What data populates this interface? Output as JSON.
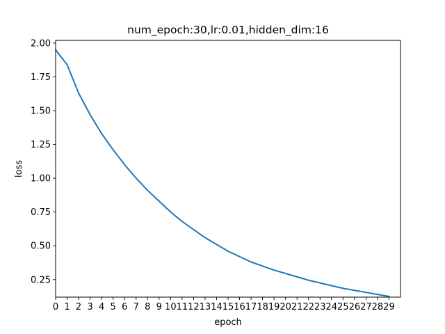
{
  "chart_data": {
    "type": "line",
    "title": "num_epoch:30,lr:0.01,hidden_dim:16",
    "xlabel": "epoch",
    "ylabel": "loss",
    "xlim": [
      0,
      30
    ],
    "ylim": [
      0.12,
      2.02
    ],
    "x": [
      0,
      1,
      2,
      3,
      4,
      5,
      6,
      7,
      8,
      9,
      10,
      11,
      12,
      13,
      14,
      15,
      16,
      17,
      18,
      19,
      20,
      21,
      22,
      23,
      24,
      25,
      26,
      27,
      28,
      29
    ],
    "xticks": [
      "0",
      "1",
      "2",
      "3",
      "4",
      "5",
      "6",
      "7",
      "8",
      "9",
      "10",
      "11",
      "12",
      "13",
      "14",
      "15",
      "16",
      "17",
      "18",
      "19",
      "20",
      "21",
      "22",
      "23",
      "24",
      "25",
      "26",
      "27",
      "28",
      "29"
    ],
    "yticks": [
      "0.25",
      "0.50",
      "0.75",
      "1.00",
      "1.25",
      "1.50",
      "1.75",
      "2.00"
    ],
    "series": [
      {
        "color": "#1f77b4",
        "values": [
          1.95,
          1.84,
          1.63,
          1.47,
          1.33,
          1.21,
          1.1,
          1.0,
          0.91,
          0.83,
          0.75,
          0.68,
          0.62,
          0.56,
          0.51,
          0.46,
          0.42,
          0.38,
          0.35,
          0.32,
          0.295,
          0.27,
          0.245,
          0.225,
          0.205,
          0.185,
          0.17,
          0.155,
          0.14,
          0.125
        ]
      }
    ],
    "grid": false,
    "legend": "none"
  }
}
